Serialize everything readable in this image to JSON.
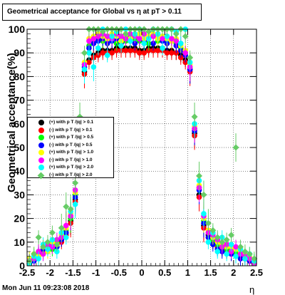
{
  "title": "Geometrical acceptance for Global vs  η at pT > 0.11",
  "timestamp": "Mon Jun 11 09:23:08 2018",
  "colors": {
    "series_pos_all": "#000000",
    "series_neg_all": "#ff0000",
    "series_pos_05": "#00ff00",
    "series_neg_05": "#0000ff",
    "series_pos_10": "#ffff00",
    "series_neg_10": "#ff00ff",
    "series_pos_20": "#00ffff",
    "series_neg_20": "#66cc66"
  },
  "chart_data": {
    "type": "scatter",
    "title": "Geometrical acceptance for Global vs  η at pT > 0.11",
    "xlabel": "η",
    "ylabel": "Geometrical acceptance(%)",
    "xlim": [
      -2.5,
      2.5
    ],
    "ylim": [
      0,
      100
    ],
    "x_ticks": [
      "-2.5",
      "-2",
      "-1.5",
      "-1",
      "-0.5",
      "0",
      "0.5",
      "1",
      "1.5",
      "2",
      "2.5"
    ],
    "y_ticks": [
      "0",
      "10",
      "20",
      "30",
      "40",
      "50",
      "60",
      "70",
      "80",
      "90",
      "100"
    ],
    "grid": true,
    "legend_position": "left-middle",
    "series": [
      {
        "name": "(+) with p T /|q| > 0.1",
        "marker": "circle",
        "color": "#000000",
        "x": [
          -2.45,
          -2.35,
          -2.25,
          -2.15,
          -2.05,
          -1.95,
          -1.85,
          -1.75,
          -1.65,
          -1.55,
          -1.45,
          -1.35,
          -1.25,
          -1.15,
          -1.05,
          -0.95,
          -0.85,
          -0.75,
          -0.65,
          -0.55,
          -0.45,
          -0.35,
          -0.25,
          -0.15,
          -0.05,
          0.05,
          0.15,
          0.25,
          0.35,
          0.45,
          0.55,
          0.65,
          0.75,
          0.85,
          0.95,
          1.05,
          1.15,
          1.25,
          1.35,
          1.45,
          1.55,
          1.65,
          1.75,
          1.85,
          1.95,
          2.05,
          2.15,
          2.25,
          2.35,
          2.45
        ],
        "y": [
          1,
          3,
          5,
          6,
          7,
          8,
          9,
          11,
          14,
          19,
          28,
          55,
          82,
          87,
          89,
          90,
          91,
          91,
          91,
          92,
          92,
          92,
          92,
          92,
          91,
          91,
          92,
          92,
          92,
          92,
          91,
          91,
          90,
          89,
          87,
          83,
          56,
          30,
          17,
          13,
          10,
          8,
          7,
          6,
          6,
          5,
          4,
          3,
          2,
          1
        ]
      },
      {
        "name": "(-) with p T /|q| > 0.1",
        "marker": "circle",
        "color": "#ff0000",
        "x": [
          -2.45,
          -2.35,
          -2.25,
          -2.15,
          -2.05,
          -1.95,
          -1.85,
          -1.75,
          -1.65,
          -1.55,
          -1.45,
          -1.35,
          -1.25,
          -1.15,
          -1.05,
          -0.95,
          -0.85,
          -0.75,
          -0.65,
          -0.55,
          -0.45,
          -0.35,
          -0.25,
          -0.15,
          -0.05,
          0.05,
          0.15,
          0.25,
          0.35,
          0.45,
          0.55,
          0.65,
          0.75,
          0.85,
          0.95,
          1.05,
          1.15,
          1.25,
          1.35,
          1.45,
          1.55,
          1.65,
          1.75,
          1.85,
          1.95,
          2.05,
          2.15,
          2.25,
          2.35,
          2.45
        ],
        "y": [
          1,
          3,
          4,
          6,
          7,
          8,
          9,
          10,
          13,
          18,
          27,
          54,
          81,
          86,
          88,
          89,
          90,
          90,
          90,
          91,
          91,
          91,
          91,
          91,
          90,
          90,
          91,
          91,
          91,
          91,
          90,
          90,
          90,
          88,
          86,
          82,
          55,
          29,
          16,
          12,
          10,
          8,
          7,
          6,
          5,
          5,
          4,
          3,
          2,
          1
        ]
      },
      {
        "name": "(+) with p T /|q| > 0.5",
        "marker": "circle",
        "color": "#00ff00",
        "x": [
          -2.45,
          -2.35,
          -2.25,
          -2.15,
          -2.05,
          -1.95,
          -1.85,
          -1.75,
          -1.65,
          -1.55,
          -1.45,
          -1.35,
          -1.25,
          -1.15,
          -1.05,
          -0.95,
          -0.85,
          -0.75,
          -0.65,
          -0.55,
          -0.45,
          -0.35,
          -0.25,
          -0.15,
          -0.05,
          0.05,
          0.15,
          0.25,
          0.35,
          0.45,
          0.55,
          0.65,
          0.75,
          0.85,
          0.95,
          1.05,
          1.15,
          1.25,
          1.35,
          1.45,
          1.55,
          1.65,
          1.75,
          1.85,
          1.95,
          2.05,
          2.15,
          2.25,
          2.35,
          2.45
        ],
        "y": [
          2,
          4,
          6,
          5,
          8,
          7,
          10,
          12,
          15,
          20,
          30,
          57,
          85,
          93,
          95,
          96,
          95,
          97,
          96,
          94,
          96,
          95,
          97,
          96,
          95,
          96,
          94,
          97,
          95,
          96,
          95,
          96,
          94,
          92,
          90,
          84,
          58,
          33,
          19,
          14,
          11,
          9,
          8,
          7,
          7,
          6,
          5,
          4,
          3,
          2
        ]
      },
      {
        "name": "(-) with p T /|q| > 0.5",
        "marker": "circle",
        "color": "#0000ff",
        "x": [
          -2.45,
          -2.35,
          -2.25,
          -2.15,
          -2.05,
          -1.95,
          -1.85,
          -1.75,
          -1.65,
          -1.55,
          -1.45,
          -1.35,
          -1.25,
          -1.15,
          -1.05,
          -0.95,
          -0.85,
          -0.75,
          -0.65,
          -0.55,
          -0.45,
          -0.35,
          -0.25,
          -0.15,
          -0.05,
          0.05,
          0.15,
          0.25,
          0.35,
          0.45,
          0.55,
          0.65,
          0.75,
          0.85,
          0.95,
          1.05,
          1.15,
          1.25,
          1.35,
          1.45,
          1.55,
          1.65,
          1.75,
          1.85,
          1.95,
          2.05,
          2.15,
          2.25,
          2.35,
          2.45
        ],
        "y": [
          1,
          2,
          5,
          7,
          6,
          9,
          8,
          11,
          14,
          21,
          29,
          56,
          84,
          92,
          94,
          95,
          96,
          94,
          95,
          96,
          94,
          96,
          95,
          94,
          96,
          95,
          96,
          94,
          96,
          95,
          94,
          95,
          93,
          91,
          89,
          83,
          57,
          32,
          18,
          12,
          9,
          7,
          6,
          8,
          5,
          7,
          3,
          4,
          2,
          1
        ]
      },
      {
        "name": "(+) with p T /|q| > 1.0",
        "marker": "circle",
        "color": "#ffff00",
        "x": [
          -2.45,
          -2.35,
          -2.25,
          -2.15,
          -2.05,
          -1.95,
          -1.85,
          -1.75,
          -1.65,
          -1.55,
          -1.45,
          -1.35,
          -1.25,
          -1.15,
          -1.05,
          -0.95,
          -0.85,
          -0.75,
          -0.65,
          -0.55,
          -0.45,
          -0.35,
          -0.25,
          -0.15,
          -0.05,
          0.05,
          0.15,
          0.25,
          0.35,
          0.45,
          0.55,
          0.65,
          0.75,
          0.85,
          0.95,
          1.05,
          1.15,
          1.25,
          1.35,
          1.45,
          1.55,
          1.65,
          1.75,
          1.85,
          1.95,
          2.05,
          2.15,
          2.25,
          2.35,
          2.45
        ],
        "y": [
          3,
          5,
          4,
          8,
          6,
          10,
          9,
          13,
          16,
          22,
          31,
          58,
          86,
          96,
          97,
          98,
          97,
          96,
          98,
          97,
          95,
          98,
          96,
          97,
          98,
          96,
          97,
          98,
          96,
          97,
          96,
          95,
          96,
          93,
          91,
          85,
          59,
          34,
          20,
          15,
          12,
          10,
          9,
          8,
          8,
          7,
          6,
          5,
          4,
          2
        ]
      },
      {
        "name": "(-) with p T /|q| > 1.0",
        "marker": "circle",
        "color": "#ff00ff",
        "x": [
          -2.45,
          -2.35,
          -2.25,
          -2.15,
          -2.05,
          -1.95,
          -1.85,
          -1.75,
          -1.65,
          -1.55,
          -1.45,
          -1.35,
          -1.25,
          -1.15,
          -1.05,
          -0.95,
          -0.85,
          -0.75,
          -0.65,
          -0.55,
          -0.45,
          -0.35,
          -0.25,
          -0.15,
          -0.05,
          0.05,
          0.15,
          0.25,
          0.35,
          0.45,
          0.55,
          0.65,
          0.75,
          0.85,
          0.95,
          1.05,
          1.15,
          1.25,
          1.35,
          1.45,
          1.55,
          1.65,
          1.75,
          1.85,
          1.95,
          2.05,
          2.15,
          2.25,
          2.35,
          2.45
        ],
        "y": [
          2,
          3,
          6,
          5,
          9,
          8,
          11,
          12,
          17,
          21,
          32,
          57,
          85,
          95,
          96,
          97,
          98,
          97,
          96,
          98,
          97,
          96,
          98,
          97,
          96,
          98,
          96,
          97,
          98,
          96,
          97,
          96,
          95,
          94,
          90,
          84,
          58,
          33,
          21,
          14,
          13,
          11,
          8,
          9,
          6,
          8,
          5,
          4,
          3,
          1
        ]
      },
      {
        "name": "(+) with p T /|q| > 2.0",
        "marker": "circle",
        "color": "#00ffff",
        "x": [
          -2.45,
          -2.35,
          -2.25,
          -2.15,
          -2.05,
          -1.95,
          -1.85,
          -1.75,
          -1.65,
          -1.55,
          -1.45,
          -1.35,
          -1.25,
          -1.15,
          -1.05,
          -0.95,
          -0.85,
          -0.75,
          -0.65,
          -0.55,
          -0.45,
          -0.35,
          -0.25,
          -0.15,
          -0.05,
          0.05,
          0.15,
          0.25,
          0.35,
          0.45,
          0.55,
          0.65,
          0.75,
          0.85,
          0.95,
          1.05,
          1.15,
          1.25,
          1.35,
          1.45,
          1.55,
          1.65,
          1.75,
          1.85,
          1.95,
          2.05,
          2.15,
          2.25,
          2.35,
          2.45
        ],
        "y": [
          1,
          4,
          3,
          9,
          7,
          11,
          6,
          14,
          12,
          23,
          26,
          60,
          83,
          90,
          84,
          92,
          100,
          89,
          97,
          99,
          93,
          100,
          95,
          98,
          100,
          94,
          96,
          100,
          98,
          92,
          97,
          100,
          99,
          94,
          100,
          86,
          60,
          36,
          22,
          10,
          14,
          6,
          12,
          5,
          9,
          4,
          7,
          3,
          5,
          2
        ]
      },
      {
        "name": "(-) with p T /|q| > 2.0",
        "marker": "diamond",
        "color": "#66cc66",
        "x": [
          -2.45,
          -2.35,
          -2.25,
          -2.15,
          -2.05,
          -1.95,
          -1.85,
          -1.75,
          -1.65,
          -1.55,
          -1.45,
          -1.35,
          -1.25,
          -1.15,
          -1.05,
          -0.95,
          -0.85,
          -0.75,
          -0.65,
          -0.55,
          -0.45,
          -0.35,
          -0.25,
          -0.15,
          -0.05,
          0.05,
          0.15,
          0.25,
          0.35,
          0.45,
          0.55,
          0.65,
          0.75,
          0.85,
          0.95,
          1.05,
          1.15,
          1.25,
          1.35,
          1.45,
          1.55,
          1.65,
          1.75,
          1.85,
          1.95,
          2.05,
          2.15,
          2.25,
          2.35,
          2.45
        ],
        "y": [
          2,
          5,
          12,
          8,
          10,
          14,
          9,
          16,
          25,
          24,
          35,
          63,
          90,
          100,
          100,
          100,
          99,
          100,
          100,
          100,
          100,
          98,
          100,
          100,
          100,
          100,
          99,
          100,
          100,
          100,
          100,
          100,
          98,
          100,
          97,
          88,
          63,
          38,
          30,
          18,
          15,
          12,
          10,
          11,
          13,
          50,
          8,
          6,
          5,
          3
        ]
      }
    ]
  }
}
